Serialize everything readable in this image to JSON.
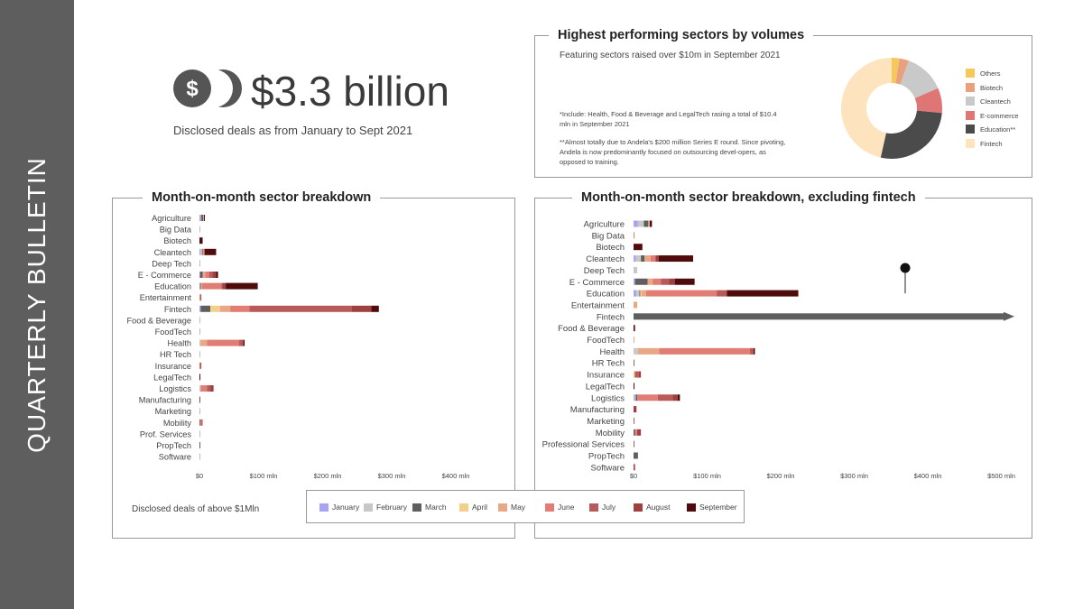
{
  "side_title": "QUARTERLY BULLETIN",
  "headline": {
    "amount": "$3.3 billion",
    "subtitle": "Disclosed deals as from January to Sept 2021"
  },
  "colors": {
    "January": "#a8a4ef",
    "February": "#c8c8c8",
    "March": "#5f5f5f",
    "April": "#f2d08a",
    "May": "#e8a885",
    "June": "#e07e76",
    "July": "#b85a5a",
    "August": "#9e4040",
    "September": "#500c0c"
  },
  "top_panel": {
    "title": "Highest performing sectors by volumes",
    "featuring": "Featuring  sectors raised over $10m in September 2021",
    "note1": "*Include: Health, Food & Beverage and LegalTech rasing a total of $10.4 mln in September 2021",
    "note2": "**Almost totally due to Andela's $200 million Series E round. Since pivoting, Andela is now predominantly focused on outsourcing devel-opers, as opposed to training."
  },
  "left_title": "Month-on-month sector breakdown",
  "right_title": "Month-on-month sector breakdown, excluding fintech",
  "foot_note": "Disclosed deals of above $1Mln",
  "legend": [
    "January",
    "February",
    "March",
    "April",
    "May",
    "June",
    "July",
    "August",
    "September"
  ],
  "chart_data": [
    {
      "type": "pie",
      "title": "Highest performing sectors by volumes",
      "categories": [
        "Others",
        "Biotech",
        "Cleantech",
        "E-commerce",
        "Education**",
        "Fintech"
      ],
      "values": [
        2.5,
        3,
        13,
        8,
        27,
        46.5
      ],
      "colors": [
        "#f6c75b",
        "#e9a17d",
        "#c9c9c9",
        "#e07576",
        "#4b4b4b",
        "#fde3be"
      ],
      "legend_position": "right"
    },
    {
      "type": "bar",
      "orientation": "horizontal",
      "stacked": true,
      "title": "Month-on-month sector breakdown",
      "xticks": [
        0,
        100,
        200,
        300,
        400
      ],
      "xtick_labels": [
        "$0",
        "$100 mln",
        "$200 mln",
        "$300 mln",
        "$400 mln"
      ],
      "xlim": [
        0,
        450
      ],
      "categories": [
        "Agriculture",
        "Big Data",
        "Biotech",
        "Cleantech",
        "Deep Tech",
        "E - Commerce",
        "Education",
        "Entertainment",
        "Fintech",
        "Food & Beverage",
        "FoodTech",
        "Health",
        "HR Tech",
        "Insurance",
        "LegalTech",
        "Logistics",
        "Manufacturing",
        "Marketing",
        "Mobility",
        "Prof. Services",
        "PropTech",
        "Software"
      ],
      "series": [
        {
          "name": "January",
          "values": [
            3,
            0,
            0,
            1.5,
            0,
            1,
            1,
            0,
            2,
            0,
            0,
            0,
            0,
            0,
            0,
            0,
            0,
            0,
            0,
            0,
            0,
            0
          ]
        },
        {
          "name": "February",
          "values": [
            0,
            0,
            0,
            2.5,
            0,
            0,
            0,
            0,
            0,
            0,
            0,
            2,
            0,
            0,
            0,
            2,
            0,
            0,
            0,
            0,
            0,
            0
          ]
        },
        {
          "name": "March",
          "values": [
            3,
            0,
            0,
            1,
            0,
            4,
            1,
            0,
            15,
            0,
            0,
            0,
            0,
            0,
            0,
            0,
            0,
            0,
            1,
            0,
            1,
            0
          ]
        },
        {
          "name": "April",
          "values": [
            0,
            0,
            0,
            0,
            0,
            0,
            0,
            0,
            15,
            0,
            0,
            0,
            0,
            0,
            0,
            0,
            0,
            0,
            0,
            0,
            0,
            0
          ]
        },
        {
          "name": "May",
          "values": [
            1,
            0,
            0,
            1,
            0,
            4,
            2,
            1,
            16,
            0,
            0,
            10,
            0,
            0,
            0,
            0,
            0,
            0,
            0,
            0,
            0,
            0
          ]
        },
        {
          "name": "June",
          "values": [
            0,
            0,
            0,
            2,
            0,
            6,
            30,
            0,
            30,
            0,
            0,
            50,
            0,
            1,
            0,
            10,
            0,
            0,
            2,
            0,
            0,
            0
          ]
        },
        {
          "name": "July",
          "values": [
            0,
            0,
            0,
            0,
            0,
            5,
            2,
            2,
            160,
            0,
            0,
            5,
            0,
            2,
            0,
            5,
            0,
            0,
            2,
            0,
            0,
            0
          ]
        },
        {
          "name": "August",
          "values": [
            0,
            0,
            0,
            0,
            0,
            6,
            5,
            0,
            30,
            0,
            0,
            2,
            0,
            0,
            0,
            5,
            1,
            0,
            0,
            0,
            0,
            0
          ]
        },
        {
          "name": "September",
          "values": [
            1,
            0,
            5,
            18,
            0,
            3,
            50,
            0,
            12,
            0,
            0,
            1,
            0,
            0,
            1,
            0,
            0,
            0,
            0,
            0,
            0,
            0
          ]
        }
      ]
    },
    {
      "type": "bar",
      "orientation": "horizontal",
      "stacked": true,
      "title": "Month-on-month sector breakdown, excluding fintech",
      "xticks": [
        0,
        100,
        200,
        300,
        400,
        500
      ],
      "xtick_labels": [
        "$0",
        "$100 mln",
        "$200 mln",
        "$300 mln",
        "$400 mln",
        "$500 mln"
      ],
      "xlim": [
        0,
        560
      ],
      "categories": [
        "Agriculture",
        "Big Data",
        "Biotech",
        "Cleantech",
        "Deep Tech",
        "E - Commerce",
        "Education",
        "Entertainment",
        "Fintech",
        "Food & Beverage",
        "FoodTech",
        "Health",
        "HR Tech",
        "Insurance",
        "LegalTech",
        "Logistics",
        "Manufacturing",
        "Marketing",
        "Mobility",
        "Professional Services",
        "PropTech",
        "Software"
      ],
      "series": [
        {
          "name": "January",
          "values": [
            6,
            0,
            0,
            3,
            0,
            2,
            4,
            0,
            0,
            0,
            0,
            0,
            0,
            0,
            0,
            1,
            0,
            0,
            0,
            0,
            0,
            0
          ]
        },
        {
          "name": "February",
          "values": [
            8,
            0,
            0,
            7,
            5,
            0,
            4,
            0,
            0,
            0,
            0,
            6,
            0,
            0,
            0,
            2,
            0,
            0,
            0,
            0,
            0,
            0
          ]
        },
        {
          "name": "March",
          "values": [
            6,
            0,
            0,
            5,
            0,
            17,
            1,
            0,
            0,
            0,
            0,
            0,
            0,
            0,
            0,
            2,
            0,
            0,
            2,
            0,
            6,
            0
          ]
        },
        {
          "name": "April",
          "values": [
            0,
            0,
            0,
            0,
            0,
            0,
            2,
            0,
            0,
            0,
            0,
            0,
            0,
            1,
            0,
            0,
            0,
            0,
            0,
            0,
            0,
            0
          ]
        },
        {
          "name": "May",
          "values": [
            2,
            0,
            0,
            8,
            0,
            7,
            6,
            5,
            0,
            0,
            1,
            29,
            0,
            1,
            0,
            0,
            0,
            0,
            0,
            0,
            0,
            0
          ]
        },
        {
          "name": "June",
          "values": [
            0,
            1,
            0,
            7,
            0,
            11,
            96,
            0,
            0,
            0,
            0,
            123,
            0,
            0,
            0,
            28,
            0,
            0,
            3,
            0,
            0,
            0
          ]
        },
        {
          "name": "July",
          "values": [
            0,
            0,
            0,
            0,
            0,
            11,
            14,
            0,
            0,
            0,
            0,
            5,
            1,
            5,
            0,
            20,
            0,
            1,
            0,
            1,
            0,
            0
          ]
        },
        {
          "name": "August",
          "values": [
            0,
            0,
            0,
            4,
            0,
            8,
            0,
            0,
            0,
            0,
            0,
            0,
            0,
            3,
            0,
            7,
            4,
            0,
            5,
            0,
            0,
            2
          ]
        },
        {
          "name": "September",
          "values": [
            3,
            0,
            12,
            47,
            0,
            27,
            97,
            0,
            0,
            2,
            0,
            2,
            0,
            0,
            1,
            3,
            0,
            0,
            0,
            0,
            0,
            0
          ]
        }
      ],
      "annotations": [
        {
          "type": "arrow",
          "sector": "Fintech"
        }
      ]
    }
  ]
}
